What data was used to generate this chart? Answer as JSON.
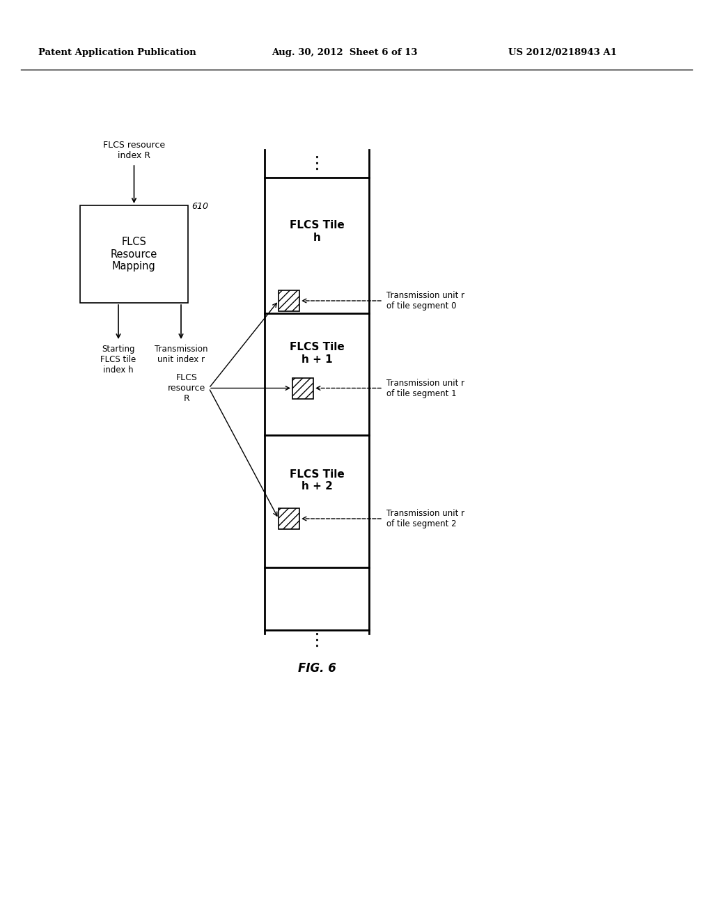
{
  "header_left": "Patent Application Publication",
  "header_center": "Aug. 30, 2012  Sheet 6 of 13",
  "header_right": "US 2012/0218943 A1",
  "fig_label": "FIG. 6",
  "bg_color": "#ffffff",
  "text_color": "#000000",
  "box_610_label": "FLCS\nResource\nMapping",
  "box_610_number": "610",
  "input_label": "FLCS resource\nindex R",
  "out_left_label": "Starting\nFLCS tile\nindex h",
  "out_right_label": "Transmission\nunit index r",
  "flcs_resource_label": "FLCS\nresource\nR",
  "tile_h_label": "FLCS Tile\nh",
  "tile_h1_label": "FLCS Tile\nh + 1",
  "tile_h2_label": "FLCS Tile\nh + 2",
  "seg0_label": "Transmission unit r\nof tile segment 0",
  "seg1_label": "Transmission unit r\nof tile segment 1",
  "seg2_label": "Transmission unit r\nof tile segment 2"
}
